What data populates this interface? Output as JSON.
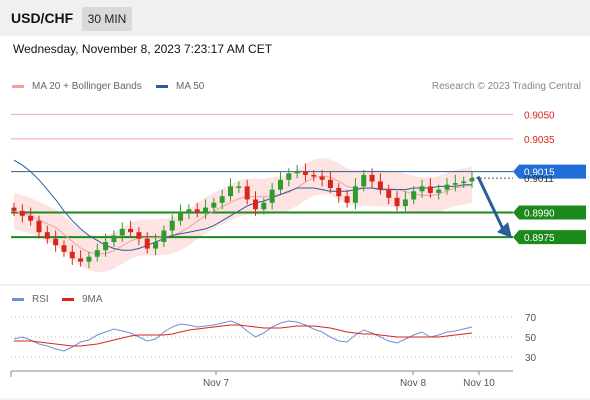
{
  "header": {
    "pair": "USD/CHF",
    "timeframe": "30 MIN"
  },
  "datetime": "Wednesday, November 8, 2023 7:23:17 AM CET",
  "legend_top": [
    {
      "label": "MA 20 + Bollinger Bands",
      "color": "#f4a19e"
    },
    {
      "label": "MA 50",
      "color": "#2c5d9a"
    }
  ],
  "credit": "Research © 2023 Trading Central",
  "legend_bottom": [
    {
      "label": "RSI",
      "color": "#6f8fd8"
    },
    {
      "label": "9MA",
      "color": "#d9261c"
    }
  ],
  "colors": {
    "resistance": "#f2a4a0",
    "pivot": "#2c5d9a",
    "support": "#1b8a1b",
    "bull": "#2e9b2e",
    "bear": "#d9261c",
    "arrow": "#2c5d9a",
    "current": "#1f6fd6"
  },
  "chart_data": [
    {
      "type": "line",
      "title": "USD/CHF 30 MIN",
      "x_ticks": [
        "Nov 7",
        "Nov 8",
        "Nov 10"
      ],
      "ylim": [
        0.895,
        0.906
      ],
      "levels": [
        {
          "label": "0.9050",
          "value": 0.905,
          "kind": "resistance"
        },
        {
          "label": "0.9035",
          "value": 0.9035,
          "kind": "resistance"
        },
        {
          "label": "0.9015",
          "value": 0.9015,
          "kind": "pivot"
        },
        {
          "label": "0.8990",
          "value": 0.899,
          "kind": "support"
        },
        {
          "label": "0.8975",
          "value": 0.8975,
          "kind": "support"
        }
      ],
      "current_price": "0.9011",
      "price_series": [
        0.8991,
        0.8988,
        0.8985,
        0.8978,
        0.8974,
        0.897,
        0.8966,
        0.8962,
        0.896,
        0.8963,
        0.8967,
        0.8972,
        0.8976,
        0.898,
        0.8978,
        0.8974,
        0.8968,
        0.8972,
        0.8979,
        0.8985,
        0.899,
        0.8992,
        0.899,
        0.8993,
        0.8996,
        0.9,
        0.9006,
        0.9006,
        0.8998,
        0.8992,
        0.8996,
        0.9004,
        0.901,
        0.9014,
        0.9015,
        0.9013,
        0.9012,
        0.901,
        0.9005,
        0.9,
        0.8996,
        0.9006,
        0.9013,
        0.9009,
        0.9004,
        0.8999,
        0.8994,
        0.8998,
        0.9003,
        0.9006,
        0.9002,
        0.9004,
        0.9007,
        0.9008,
        0.9009,
        0.9011
      ],
      "ma50_series": [
        0.9022,
        0.9019,
        0.9015,
        0.901,
        0.9004,
        0.8998,
        0.8991,
        0.8985,
        0.898,
        0.8976,
        0.8973,
        0.897,
        0.8968,
        0.8967,
        0.8967,
        0.8968,
        0.897,
        0.8972,
        0.8974,
        0.8976,
        0.8977,
        0.8978,
        0.8979,
        0.898,
        0.8982,
        0.8985,
        0.8988,
        0.8991,
        0.8994,
        0.8996,
        0.8997,
        0.8999,
        0.9001,
        0.9003,
        0.9005,
        0.9005,
        0.9005,
        0.9004,
        0.9003,
        0.9003,
        0.9003,
        0.9004,
        0.9005,
        0.9005,
        0.9004,
        0.9004,
        0.9004,
        0.9004,
        0.9005,
        0.9005,
        0.9005,
        0.9006,
        0.9006,
        0.9006,
        0.9007,
        0.9007
      ],
      "forecast": {
        "from": 0.9012,
        "to": 0.8975
      }
    },
    {
      "type": "line",
      "title": "RSI",
      "y_ticks": [
        70,
        50,
        30
      ],
      "ylim": [
        20,
        80
      ],
      "series": [
        {
          "name": "RSI",
          "values": [
            48,
            50,
            47,
            43,
            41,
            38,
            36,
            40,
            45,
            47,
            52,
            55,
            58,
            56,
            54,
            50,
            46,
            48,
            55,
            60,
            63,
            62,
            60,
            61,
            62,
            64,
            66,
            63,
            56,
            50,
            54,
            60,
            64,
            66,
            65,
            62,
            58,
            55,
            50,
            46,
            45,
            52,
            57,
            54,
            50,
            46,
            44,
            48,
            52,
            55,
            50,
            52,
            55,
            56,
            58,
            60
          ]
        },
        {
          "name": "9MA",
          "values": [
            46,
            46,
            46,
            45,
            44,
            43,
            42,
            41,
            41,
            42,
            43,
            45,
            47,
            49,
            51,
            52,
            52,
            52,
            52,
            53,
            55,
            57,
            58,
            59,
            60,
            61,
            62,
            62,
            61,
            60,
            59,
            59,
            59,
            60,
            61,
            61,
            61,
            60,
            59,
            57,
            55,
            54,
            53,
            53,
            52,
            51,
            50,
            50,
            50,
            50,
            50,
            50,
            51,
            52,
            53,
            54
          ]
        }
      ]
    }
  ]
}
